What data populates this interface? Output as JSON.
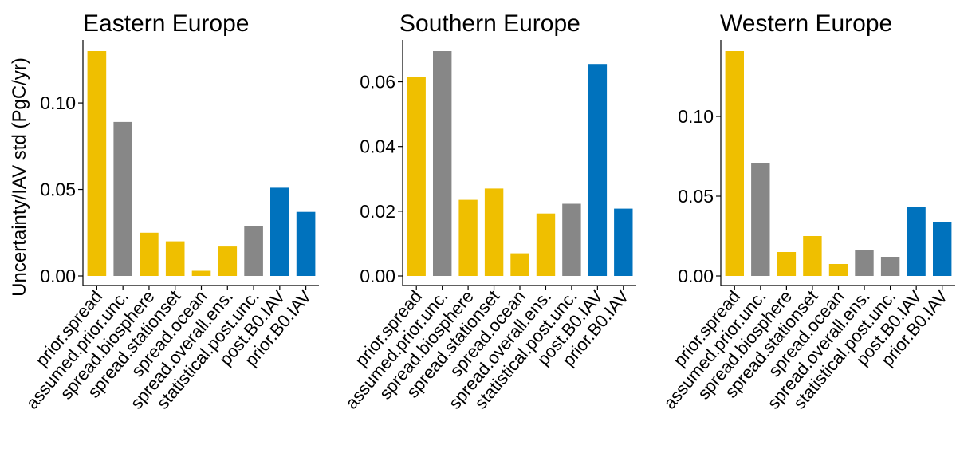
{
  "figure": {
    "ylabel": "Uncertainty/IAV std (PgC/yr)"
  },
  "colors": {
    "yellow": "#EFBF00",
    "grey": "#878787",
    "blue": "#0072BD"
  },
  "chart_data": [
    {
      "type": "bar",
      "title": "Eastern Europe",
      "categories": [
        "prior.spread",
        "assumed.prior.unc.",
        "spread.biosphere",
        "spread.stationset",
        "spread.ocean",
        "spread.overall.ens.",
        "statistical.post.unc.",
        "post.B0.IAV",
        "prior.B0.IAV"
      ],
      "values": [
        0.13,
        0.089,
        0.025,
        0.02,
        0.003,
        0.017,
        0.029,
        0.051,
        0.037
      ],
      "bar_colors": [
        "yellow",
        "grey",
        "yellow",
        "yellow",
        "yellow",
        "yellow",
        "grey",
        "blue",
        "blue"
      ],
      "yticks": [
        0.0,
        0.05,
        0.1
      ],
      "ytick_labels": [
        "0.00",
        "0.05",
        "0.10"
      ],
      "ylim": [
        0,
        0.13
      ]
    },
    {
      "type": "bar",
      "title": "Southern Europe",
      "categories": [
        "prior.spread",
        "assumed.prior.unc.",
        "spread.biosphere",
        "spread.stationset",
        "spread.ocean",
        "spread.overall.ens.",
        "statistical.post.unc.",
        "post.B0.IAV",
        "prior.B0.IAV"
      ],
      "values": [
        0.0615,
        0.0695,
        0.0235,
        0.027,
        0.007,
        0.0193,
        0.0223,
        0.0655,
        0.0208
      ],
      "bar_colors": [
        "yellow",
        "grey",
        "yellow",
        "yellow",
        "yellow",
        "yellow",
        "grey",
        "blue",
        "blue"
      ],
      "yticks": [
        0.0,
        0.02,
        0.04,
        0.06
      ],
      "ytick_labels": [
        "0.00",
        "0.02",
        "0.04",
        "0.06"
      ],
      "ylim": [
        0,
        0.0695
      ]
    },
    {
      "type": "bar",
      "title": "Western Europe",
      "categories": [
        "prior.spread",
        "assumed.prior.unc.",
        "spread.biosphere",
        "spread.stationset",
        "spread.ocean",
        "spread.overall.ens.",
        "statistical.post.unc.",
        "post.B0.IAV",
        "prior.B0.IAV"
      ],
      "values": [
        0.141,
        0.071,
        0.015,
        0.025,
        0.0075,
        0.016,
        0.012,
        0.043,
        0.034
      ],
      "bar_colors": [
        "yellow",
        "grey",
        "yellow",
        "yellow",
        "yellow",
        "grey",
        "grey",
        "blue",
        "blue"
      ],
      "yticks": [
        0.0,
        0.05,
        0.1
      ],
      "ytick_labels": [
        "0.00",
        "0.05",
        "0.10"
      ],
      "ylim": [
        0,
        0.141
      ]
    }
  ]
}
